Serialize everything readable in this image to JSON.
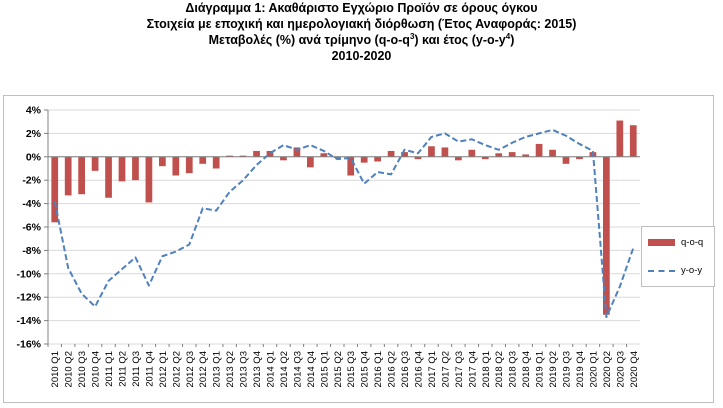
{
  "titles": {
    "line1": "Διάγραμμα 1: Ακαθάριστο Εγχώριο Προϊόν σε όρους όγκου",
    "line2": "Στοιχεία με εποχική και ημερολογιακή διόρθωση (Έτος Αναφοράς: 2015)",
    "line3_a": "Μεταβολές (%) ανά τρίμηνο (q-o-q",
    "line3_sup1": "3",
    "line3_b": ") και έτος (y-o-y",
    "line3_sup2": "4",
    "line3_c": ")",
    "line4": "2010-2020"
  },
  "colors": {
    "bar": "#c0504d",
    "line": "#4f81bd",
    "grid": "#d9d9d9",
    "axis": "#808080"
  },
  "legend": {
    "bar_label": "q-o-q",
    "line_label": "y-o-y"
  },
  "chart_data": {
    "type": "bar+line",
    "title": "Διάγραμμα 1: Ακαθάριστο Εγχώριο Προϊόν σε όρους όγκου",
    "ylim": [
      -16,
      4
    ],
    "yticks": [
      4,
      2,
      0,
      -2,
      -4,
      -6,
      -8,
      -10,
      -12,
      -14,
      -16
    ],
    "ytick_labels": [
      "4%",
      "2%",
      "0%",
      "-2%",
      "-4%",
      "-6%",
      "-8%",
      "-10%",
      "-12%",
      "-14%",
      "-16%"
    ],
    "grid": true,
    "legend_position": "right",
    "categories": [
      "2010 Q1",
      "2010 Q2",
      "2010 Q3",
      "2010 Q4",
      "2011 Q1",
      "2011 Q2",
      "2011 Q3",
      "2011 Q4",
      "2012 Q1",
      "2012 Q2",
      "2012 Q3",
      "2012 Q4",
      "2013 Q1",
      "2013 Q2",
      "2013 Q3",
      "2013 Q4",
      "2014 Q1",
      "2014 Q2",
      "2014 Q3",
      "2014 Q4",
      "2015 Q1",
      "2015 Q2",
      "2015 Q3",
      "2015 Q4",
      "2016 Q1",
      "2016 Q2",
      "2016 Q3",
      "2016 Q4",
      "2017 Q1",
      "2017 Q2",
      "2017 Q3",
      "2017 Q4",
      "2018 Q1",
      "2018 Q2",
      "2018 Q3",
      "2018 Q4",
      "2019 Q1",
      "2019 Q2",
      "2019 Q3",
      "2019 Q4",
      "2020 Q1",
      "2020 Q2",
      "2020 Q3",
      "2020 Q4"
    ],
    "series": [
      {
        "name": "q-o-q",
        "kind": "bar",
        "values": [
          -5.6,
          -3.3,
          -3.2,
          -1.2,
          -3.5,
          -2.1,
          -2.0,
          -3.9,
          -0.8,
          -1.6,
          -1.4,
          -0.6,
          -1.0,
          0.1,
          0.1,
          0.5,
          0.5,
          -0.3,
          0.8,
          -0.9,
          0.3,
          -0.1,
          -1.6,
          -0.5,
          -0.4,
          0.5,
          0.4,
          -0.2,
          0.9,
          0.8,
          -0.3,
          0.6,
          -0.2,
          0.3,
          0.4,
          0.2,
          1.1,
          0.6,
          -0.6,
          -0.2,
          0.4,
          -13.5,
          3.1,
          2.7
        ]
      },
      {
        "name": "y-o-y",
        "kind": "line",
        "values": [
          -3.8,
          -9.5,
          -11.7,
          -12.8,
          -10.6,
          -9.6,
          -8.6,
          -11.0,
          -8.5,
          -8.1,
          -7.5,
          -4.4,
          -4.6,
          -3.0,
          -2.0,
          -0.7,
          0.3,
          1.0,
          0.6,
          1.0,
          0.5,
          -0.2,
          -0.1,
          -2.3,
          -1.3,
          -1.5,
          0.6,
          0.3,
          1.7,
          2.0,
          1.3,
          1.5,
          1.0,
          0.6,
          1.2,
          1.7,
          2.0,
          2.3,
          1.8,
          1.1,
          0.5,
          -13.7,
          -11.1,
          -7.8
        ]
      }
    ]
  }
}
